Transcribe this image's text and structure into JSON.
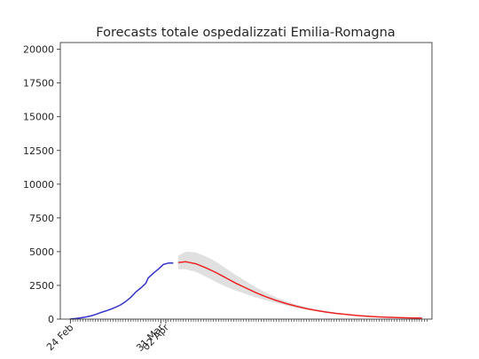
{
  "chart_data": {
    "type": "line",
    "title": "Forecasts totale ospedalizzati Emilia-Romagna",
    "xlabel": "",
    "ylabel": "",
    "x_axis": "date",
    "x_start": "2020-02-20",
    "x_end": "2020-07-17",
    "ylim": [
      0,
      20500
    ],
    "yticks": [
      0,
      2500,
      5000,
      7500,
      10000,
      12500,
      15000,
      17500,
      20000
    ],
    "xtick_labels": [
      {
        "date": "2020-02-24",
        "label": "24 Feb"
      },
      {
        "date": "2020-03-31",
        "label": "31 Mar"
      },
      {
        "date": "2020-04-02",
        "label": "02 Apr"
      }
    ],
    "grid": false,
    "series": [
      {
        "role": "observed",
        "color": "#3333cc",
        "points": [
          [
            "2020-02-24",
            10
          ],
          [
            "2020-02-26",
            40
          ],
          [
            "2020-02-28",
            90
          ],
          [
            "2020-03-01",
            150
          ],
          [
            "2020-03-03",
            230
          ],
          [
            "2020-03-05",
            340
          ],
          [
            "2020-03-07",
            480
          ],
          [
            "2020-03-09",
            600
          ],
          [
            "2020-03-11",
            730
          ],
          [
            "2020-03-13",
            880
          ],
          [
            "2020-03-15",
            1050
          ],
          [
            "2020-03-17",
            1300
          ],
          [
            "2020-03-19",
            1600
          ],
          [
            "2020-03-21",
            2000
          ],
          [
            "2020-03-23",
            2300
          ],
          [
            "2020-03-25",
            2650
          ],
          [
            "2020-03-26",
            3050
          ],
          [
            "2020-03-28",
            3400
          ],
          [
            "2020-03-30",
            3700
          ],
          [
            "2020-04-01",
            4050
          ],
          [
            "2020-04-03",
            4150
          ],
          [
            "2020-04-05",
            4150
          ]
        ]
      },
      {
        "role": "forecast",
        "color": "#ee2222",
        "points": [
          [
            "2020-04-07",
            4200
          ],
          [
            "2020-04-10",
            4250
          ],
          [
            "2020-04-14",
            4100
          ],
          [
            "2020-04-18",
            3800
          ],
          [
            "2020-04-22",
            3450
          ],
          [
            "2020-04-26",
            3050
          ],
          [
            "2020-04-30",
            2650
          ],
          [
            "2020-05-04",
            2300
          ],
          [
            "2020-05-08",
            1950
          ],
          [
            "2020-05-12",
            1650
          ],
          [
            "2020-05-16",
            1380
          ],
          [
            "2020-05-20",
            1150
          ],
          [
            "2020-05-24",
            950
          ],
          [
            "2020-05-28",
            780
          ],
          [
            "2020-06-01",
            640
          ],
          [
            "2020-06-05",
            520
          ],
          [
            "2020-06-09",
            420
          ],
          [
            "2020-06-13",
            340
          ],
          [
            "2020-06-17",
            270
          ],
          [
            "2020-06-21",
            215
          ],
          [
            "2020-06-25",
            170
          ],
          [
            "2020-06-29",
            135
          ],
          [
            "2020-07-03",
            110
          ],
          [
            "2020-07-08",
            90
          ],
          [
            "2020-07-13",
            70
          ]
        ]
      }
    ],
    "band": {
      "color": "#cccccc",
      "points": [
        [
          "2020-04-07",
          3700,
          4700
        ],
        [
          "2020-04-10",
          3700,
          5000
        ],
        [
          "2020-04-14",
          3500,
          4950
        ],
        [
          "2020-04-18",
          3150,
          4650
        ],
        [
          "2020-04-22",
          2750,
          4250
        ],
        [
          "2020-04-26",
          2400,
          3750
        ],
        [
          "2020-04-30",
          2100,
          3250
        ],
        [
          "2020-05-04",
          1850,
          2800
        ],
        [
          "2020-05-08",
          1600,
          2350
        ],
        [
          "2020-05-12",
          1400,
          1950
        ],
        [
          "2020-05-16",
          1200,
          1600
        ],
        [
          "2020-05-20",
          1000,
          1320
        ],
        [
          "2020-05-24",
          840,
          1080
        ],
        [
          "2020-05-28",
          690,
          880
        ],
        [
          "2020-06-01",
          570,
          720
        ],
        [
          "2020-06-05",
          460,
          590
        ],
        [
          "2020-06-09",
          375,
          470
        ],
        [
          "2020-06-13",
          300,
          380
        ],
        [
          "2020-06-17",
          240,
          300
        ],
        [
          "2020-06-21",
          190,
          240
        ],
        [
          "2020-06-25",
          150,
          190
        ],
        [
          "2020-06-29",
          120,
          150
        ],
        [
          "2020-07-03",
          95,
          125
        ],
        [
          "2020-07-08",
          75,
          105
        ],
        [
          "2020-07-13",
          55,
          85
        ]
      ]
    }
  }
}
